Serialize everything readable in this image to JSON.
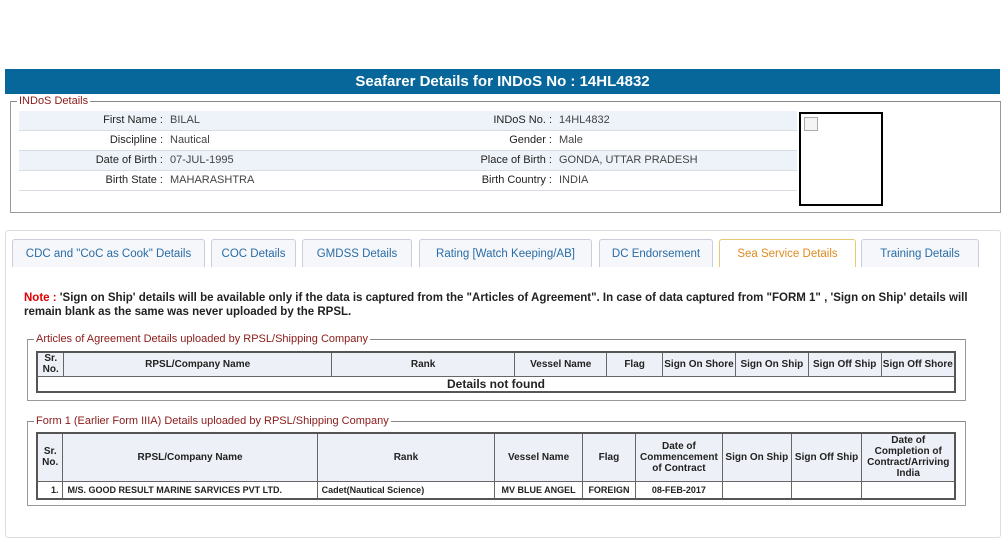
{
  "header": {
    "title": "Seafarer Details for INDoS No : 14HL4832"
  },
  "indos": {
    "legend": "INDoS Details",
    "rows": [
      {
        "l1": "First Name :",
        "v1": "BILAL",
        "l2": "INDoS No. :",
        "v2": "14HL4832"
      },
      {
        "l1": "Discipline :",
        "v1": "Nautical",
        "l2": "Gender :",
        "v2": "Male"
      },
      {
        "l1": "Date of Birth :",
        "v1": "07-JUL-1995",
        "l2": "Place of Birth :",
        "v2": "GONDA, UTTAR PRADESH"
      },
      {
        "l1": "Birth State :",
        "v1": "MAHARASHTRA",
        "l2": "Birth Country :",
        "v2": "INDIA"
      }
    ]
  },
  "tabs": [
    "CDC and \"CoC as Cook\" Details",
    "COC Details",
    "GMDSS Details",
    "Rating [Watch Keeping/AB]",
    "DC Endorsement",
    "Sea Service Details",
    "Training Details"
  ],
  "active_tab": "Sea Service Details",
  "note": {
    "label": "Note :",
    "text": " 'Sign on Ship' details will be available only if the data is captured from the \"Articles of Agreement\". In case of data captured from \"FORM 1\" , 'Sign on Ship' details will remain blank as the same was never uploaded by the RPSL."
  },
  "aoa": {
    "legend": "Articles of Agreement Details uploaded by RPSL/Shipping Company",
    "columns": [
      "Sr. No.",
      "RPSL/Company Name",
      "Rank",
      "Vessel Name",
      "Flag",
      "Sign On Shore",
      "Sign On Ship",
      "Sign Off Ship",
      "Sign Off Shore"
    ],
    "empty": "Details not found"
  },
  "form1": {
    "legend": "Form 1 (Earlier Form IIIA) Details uploaded by RPSL/Shipping Company",
    "columns": [
      "Sr. No.",
      "RPSL/Company Name",
      "Rank",
      "Vessel Name",
      "Flag",
      "Date of Commencement of Contract",
      "Sign On Ship",
      "Sign Off Ship",
      "Date of Completion of Contract/Arriving India"
    ],
    "rows": [
      [
        "1.",
        "M/S. GOOD RESULT MARINE SARVICES PVT LTD.",
        "Cadet(Nautical Science)",
        "MV BLUE ANGEL",
        "FOREIGN",
        "08-FEB-2017",
        "",
        "",
        ""
      ]
    ]
  },
  "colors": {
    "header": "#07679b",
    "legend": "#8b1a1a",
    "note": "#e00000",
    "active_tab": "#e08a1e",
    "tab": "#2a6ca6"
  }
}
